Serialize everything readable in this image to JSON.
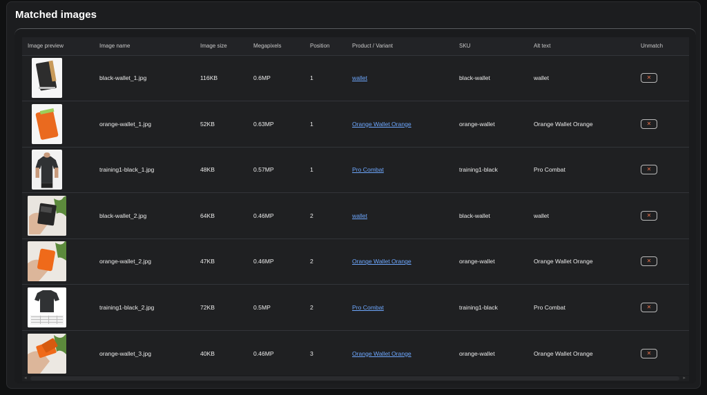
{
  "page": {
    "title": "Matched images"
  },
  "table": {
    "columns": [
      "Image preview",
      "Image name",
      "Image size",
      "Megapixels",
      "Position",
      "Product / Variant",
      "SKU",
      "Alt text",
      "Unmatch"
    ],
    "rows": [
      {
        "thumb": "black-wallet",
        "name": "black-wallet_1.jpg",
        "size": "116KB",
        "mp": "0.6MP",
        "position": "1",
        "product": "wallet",
        "sku": "black-wallet",
        "alt": "wallet"
      },
      {
        "thumb": "orange-wallet",
        "name": "orange-wallet_1.jpg",
        "size": "52KB",
        "mp": "0.63MP",
        "position": "1",
        "product": "Orange Wallet Orange",
        "sku": "orange-wallet",
        "alt": "Orange Wallet Orange"
      },
      {
        "thumb": "black-tshirt",
        "name": "training1-black_1.jpg",
        "size": "48KB",
        "mp": "0.57MP",
        "position": "1",
        "product": "Pro Combat",
        "sku": "training1-black",
        "alt": "Pro Combat"
      },
      {
        "thumb": "hand-black-wallet",
        "name": "black-wallet_2.jpg",
        "size": "64KB",
        "mp": "0.46MP",
        "position": "2",
        "product": "wallet",
        "sku": "black-wallet",
        "alt": "wallet"
      },
      {
        "thumb": "hand-orange-wallet",
        "name": "orange-wallet_2.jpg",
        "size": "47KB",
        "mp": "0.46MP",
        "position": "2",
        "product": "Orange Wallet Orange",
        "sku": "orange-wallet",
        "alt": "Orange Wallet Orange"
      },
      {
        "thumb": "black-tshirt-sizechart",
        "name": "training1-black_2.jpg",
        "size": "72KB",
        "mp": "0.5MP",
        "position": "2",
        "product": "Pro Combat",
        "sku": "training1-black",
        "alt": "Pro Combat"
      },
      {
        "thumb": "hand-orange-wallet-open",
        "name": "orange-wallet_3.jpg",
        "size": "40KB",
        "mp": "0.46MP",
        "position": "3",
        "product": "Orange Wallet Orange",
        "sku": "orange-wallet",
        "alt": "Orange Wallet Orange"
      }
    ],
    "unmatch_glyph": "✕"
  },
  "scroll": {
    "left_icon": "◂",
    "right_icon": "▸"
  },
  "colors": {
    "link": "#6ea8ff",
    "unmatch_x": "#e8734d",
    "background": "#1c1d1f"
  }
}
